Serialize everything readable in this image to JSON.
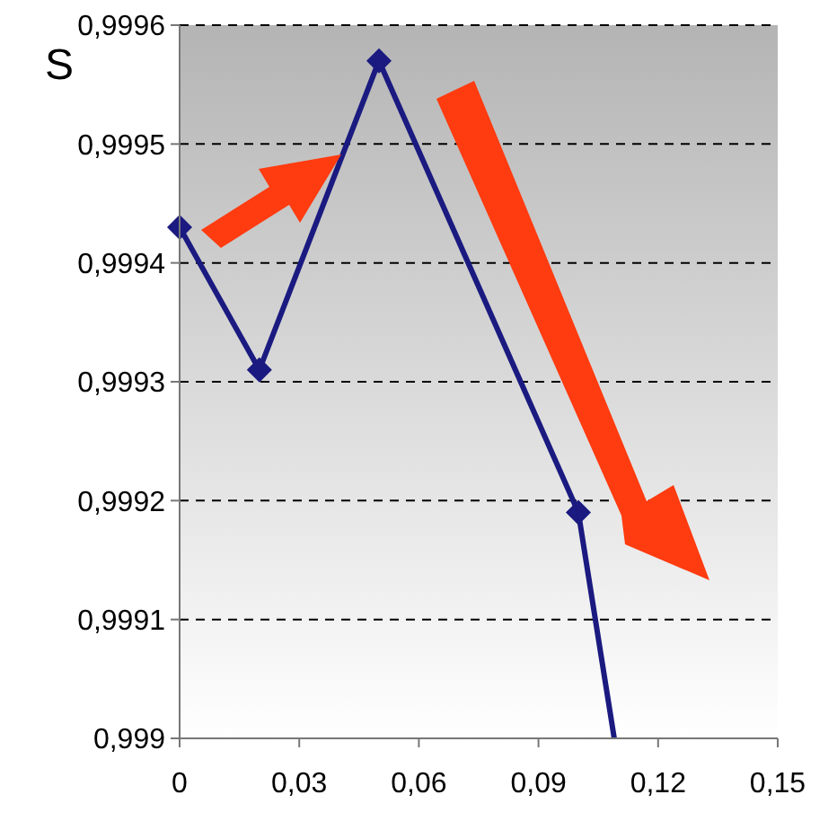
{
  "chart_data": {
    "type": "line",
    "ylabel": "S",
    "x": [
      0,
      0.02,
      0.05,
      0.1
    ],
    "series": [
      {
        "color": "#1a1a80",
        "values": [
          0.99943,
          0.99931,
          0.99957,
          0.99919
        ],
        "marker": "diamond"
      },
      {
        "color": "#1a1a80",
        "x": [
          0.1,
          0.109
        ],
        "values": [
          0.99919,
          0.999
        ],
        "marker": "none"
      }
    ],
    "xlim": [
      0,
      0.15
    ],
    "ylim": [
      0.999,
      0.9996
    ],
    "xticks": [
      0,
      {
        "value": 0.03,
        "label": "0,03"
      },
      {
        "value": 0.06,
        "label": "0,06"
      },
      {
        "value": 0.09,
        "label": "0,09"
      },
      {
        "value": 0.12,
        "label": "0,12"
      },
      {
        "value": 0.15,
        "label": "0,15"
      }
    ],
    "yticks": [
      {
        "value": 0.999,
        "label": "0,999"
      },
      {
        "value": 0.9991,
        "label": "0,9991"
      },
      {
        "value": 0.9992,
        "label": "0,9992"
      },
      {
        "value": 0.9993,
        "label": "0,9993"
      },
      {
        "value": 0.9994,
        "label": "0,9994"
      },
      {
        "value": 0.9995,
        "label": "0,9995"
      },
      {
        "value": 0.9996,
        "label": "0,9996"
      }
    ],
    "grid": "y"
  }
}
